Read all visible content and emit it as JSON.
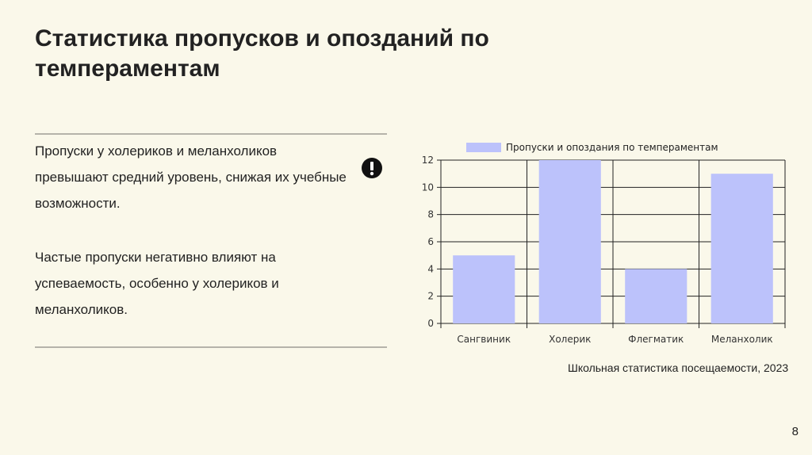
{
  "slide": {
    "title": "Статистика пропусков и опозданий по темпераментам",
    "paragraph1": "Пропуски у холериков и меланхоликов превышают средний уровень, снижая их учебные возможности.",
    "paragraph2": "Частые пропуски негативно влияют на успеваемость, особенно у холериков и меланхоликов.",
    "alert_icon": "exclamation-circle-icon",
    "source": "Школьная статистика посещаемости, 2023",
    "page_number": "8"
  },
  "chart_data": {
    "type": "bar",
    "categories": [
      "Сангвиник",
      "Холерик",
      "Флегматик",
      "Меланхолик"
    ],
    "series": [
      {
        "name": "Пропуски и опоздания по темпераментам",
        "values": [
          5,
          12,
          4,
          11
        ],
        "color": "#bcc2fb"
      }
    ],
    "ylim": [
      0,
      12
    ],
    "yticks": [
      "0",
      "2",
      "4",
      "6",
      "8",
      "10",
      "12"
    ],
    "grid": true,
    "legend": "top"
  }
}
